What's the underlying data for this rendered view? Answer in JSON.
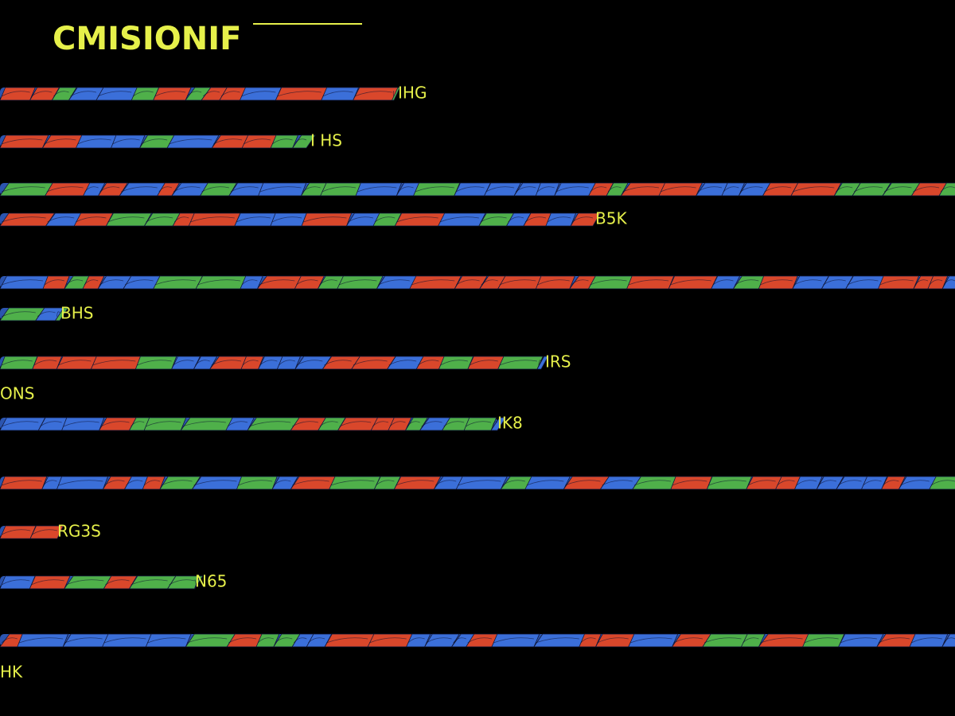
{
  "header": {
    "title": "CMISIONIF"
  },
  "labels": [
    "IHG",
    "I HS",
    "B5K",
    "BHS",
    "IRS",
    "ONS",
    "IK8",
    "RG3S",
    "N65",
    "HK"
  ]
}
